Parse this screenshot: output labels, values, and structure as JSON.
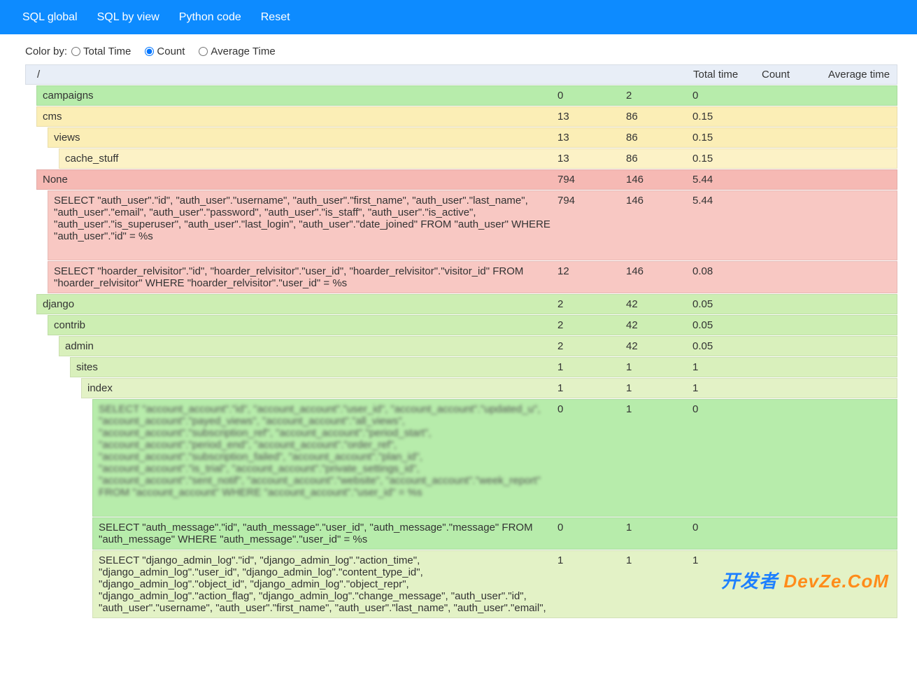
{
  "topbar": {
    "links": [
      "SQL global",
      "SQL by view",
      "Python code",
      "Reset"
    ]
  },
  "controls": {
    "label": "Color by:",
    "options": [
      "Total Time",
      "Count",
      "Average Time"
    ],
    "selected_index": 1
  },
  "columns": {
    "path": "/",
    "total_time": "Total time",
    "count": "Count",
    "avg_time": "Average time"
  },
  "palette": {
    "header_bg": "#e8eef7",
    "green_strong": "#b7ecab",
    "green_mid": "#cdeeb3",
    "green_light": "#d9f0bc",
    "green_lighter": "#e3f2c6",
    "yellow": "#fbeeb6",
    "yellow_light": "#fcf2c6",
    "red": "#f6b9b4",
    "red_light": "#f8c8c3",
    "topbar_bg": "#0d8bff"
  },
  "rows": [
    {
      "indent": 1,
      "bg": "green_strong",
      "label": "campaigns",
      "tt": "0",
      "cn": "2",
      "at": "0"
    },
    {
      "indent": 1,
      "bg": "yellow",
      "label": "cms",
      "tt": "13",
      "cn": "86",
      "at": "0.15"
    },
    {
      "indent": 2,
      "bg": "yellow",
      "label": "views",
      "tt": "13",
      "cn": "86",
      "at": "0.15"
    },
    {
      "indent": 3,
      "bg": "yellow_light",
      "label": "cache_stuff",
      "tt": "13",
      "cn": "86",
      "at": "0.15"
    },
    {
      "indent": 1,
      "bg": "red",
      "label": "None",
      "tt": "794",
      "cn": "146",
      "at": "5.44"
    },
    {
      "indent": 2,
      "bg": "red_light",
      "label": "SELECT \"auth_user\".\"id\", \"auth_user\".\"username\", \"auth_user\".\"first_name\", \"auth_user\".\"last_name\", \"auth_user\".\"email\", \"auth_user\".\"password\", \"auth_user\".\"is_staff\", \"auth_user\".\"is_active\", \"auth_user\".\"is_superuser\", \"auth_user\".\"last_login\", \"auth_user\".\"date_joined\" FROM \"auth_user\" WHERE \"auth_user\".\"id\" = %s",
      "tt": "794",
      "cn": "146",
      "at": "5.44",
      "tall": true
    },
    {
      "indent": 2,
      "bg": "red_light",
      "label": "SELECT \"hoarder_relvisitor\".\"id\", \"hoarder_relvisitor\".\"user_id\", \"hoarder_relvisitor\".\"visitor_id\" FROM \"hoarder_relvisitor\" WHERE \"hoarder_relvisitor\".\"user_id\" = %s",
      "tt": "12",
      "cn": "146",
      "at": "0.08"
    },
    {
      "indent": 1,
      "bg": "green_mid",
      "label": "django",
      "tt": "2",
      "cn": "42",
      "at": "0.05"
    },
    {
      "indent": 2,
      "bg": "green_mid",
      "label": "contrib",
      "tt": "2",
      "cn": "42",
      "at": "0.05"
    },
    {
      "indent": 3,
      "bg": "green_light",
      "label": "admin",
      "tt": "2",
      "cn": "42",
      "at": "0.05"
    },
    {
      "indent": 4,
      "bg": "green_light",
      "label": "sites",
      "tt": "1",
      "cn": "1",
      "at": "1"
    },
    {
      "indent": 5,
      "bg": "green_lighter",
      "label": "index",
      "tt": "1",
      "cn": "1",
      "at": "1"
    },
    {
      "indent": 6,
      "bg": "green_strong",
      "label": "SELECT \"account_account\".\"id\", \"account_account\".\"user_id\", \"account_account\".\"updated_u\", \"account_account\".\"payed_views\", \"account_account\".\"all_views\", \"account_account\".\"subscription_ref\", \"account_account\".\"period_start\", \"account_account\".\"period_end\", \"account_account\".\"order_ref\", \"account_account\".\"subscription_failed\", \"account_account\".\"plan_id\", \"account_account\".\"is_trial\", \"account_account\".\"private_settings_id\", \"account_account\".\"sent_notif\", \"account_account\".\"website\", \"account_account\".\"week_report\" FROM \"account_account\" WHERE \"account_account\".\"user_id\" = %s",
      "tt": "0",
      "cn": "1",
      "at": "0",
      "blurred": true,
      "tall": true
    },
    {
      "indent": 6,
      "bg": "green_strong",
      "label": "SELECT \"auth_message\".\"id\", \"auth_message\".\"user_id\", \"auth_message\".\"message\" FROM \"auth_message\" WHERE \"auth_message\".\"user_id\" = %s",
      "tt": "0",
      "cn": "1",
      "at": "0"
    },
    {
      "indent": 6,
      "bg": "green_lighter",
      "label": "SELECT \"django_admin_log\".\"id\", \"django_admin_log\".\"action_time\", \"django_admin_log\".\"user_id\", \"django_admin_log\".\"content_type_id\", \"django_admin_log\".\"object_id\", \"django_admin_log\".\"object_repr\", \"django_admin_log\".\"action_flag\", \"django_admin_log\".\"change_message\", \"auth_user\".\"id\", \"auth_user\".\"username\", \"auth_user\".\"first_name\", \"auth_user\".\"last_name\", \"auth_user\".\"email\",",
      "tt": "1",
      "cn": "1",
      "at": "1"
    }
  ],
  "watermark": {
    "part1": "开发者",
    "part2": "DevZe.CoM"
  }
}
